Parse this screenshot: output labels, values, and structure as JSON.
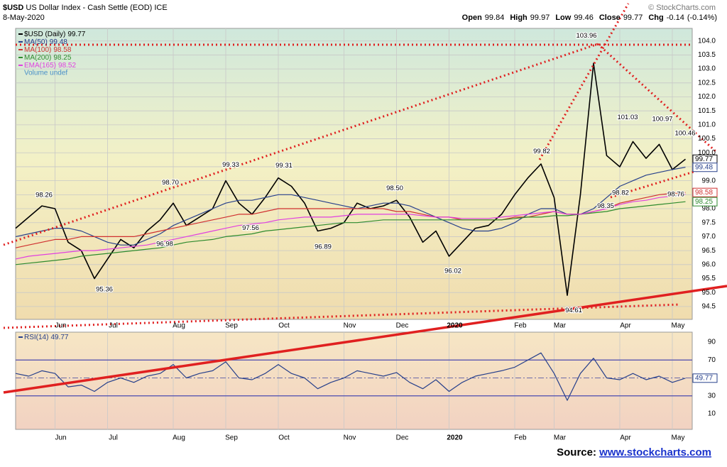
{
  "chart_data": [
    {
      "type": "line",
      "symbol": "$USD",
      "title": "US Dollar Index - Cash Settle (EOD) ICE",
      "subtitle": "8-May-2020",
      "copyright": "© StockCharts.com",
      "quote": [
        {
          "label": "Open",
          "value": 99.84
        },
        {
          "label": "High",
          "value": 99.97
        },
        {
          "label": "Low",
          "value": 99.46
        },
        {
          "label": "Close",
          "value": 99.77
        },
        {
          "label": "Chg",
          "value": -0.14,
          "pct_label": "(-0.14%)"
        }
      ],
      "volume_label": "Volume undef",
      "categories": [
        null,
        null,
        null,
        "Jun",
        null,
        null,
        null,
        "Jul",
        null,
        null,
        null,
        null,
        "Aug",
        null,
        null,
        null,
        "Sep",
        null,
        null,
        null,
        "Oct",
        null,
        null,
        null,
        null,
        "Nov",
        null,
        null,
        null,
        "Dec",
        null,
        null,
        null,
        "2020",
        null,
        null,
        null,
        null,
        "Feb",
        null,
        null,
        "Mar",
        null,
        null,
        null,
        null,
        "Apr",
        null,
        null,
        null,
        "May",
        null
      ],
      "ylim": [
        94.04,
        104.45
      ],
      "yticks": [
        {
          "value": 104,
          "label": "104.0"
        },
        103.5,
        {
          "value": 103,
          "label": "103.0"
        },
        102.5,
        {
          "value": 102,
          "label": "102.0"
        },
        101.5,
        {
          "value": 101,
          "label": "101.0"
        },
        100.5,
        {
          "value": 100,
          "label": "100.0"
        },
        99.5,
        {
          "value": 99,
          "label": "99.0"
        },
        98.5,
        {
          "value": 98,
          "label": "98.0"
        },
        97.5,
        {
          "value": 97,
          "label": "97.0"
        },
        96.5,
        {
          "value": 96,
          "label": "96.0"
        },
        95.5,
        {
          "value": 95,
          "label": "95.0"
        },
        94.5
      ],
      "grid": true,
      "series": [
        {
          "name": "$USD (Daily)",
          "color": "#000000",
          "values": [
            97.3,
            97.7,
            98.1,
            98.0,
            96.8,
            96.5,
            95.5,
            96.2,
            96.9,
            96.6,
            97.2,
            97.6,
            98.2,
            97.4,
            97.7,
            98.0,
            99.0,
            98.2,
            97.8,
            98.4,
            99.1,
            98.8,
            98.2,
            97.2,
            97.3,
            97.5,
            98.2,
            98.0,
            98.1,
            98.3,
            97.7,
            96.8,
            97.2,
            96.3,
            96.8,
            97.3,
            97.4,
            97.8,
            98.5,
            99.1,
            99.6,
            98.4,
            94.9,
            98.5,
            103.2,
            99.9,
            99.5,
            100.4,
            99.8,
            100.3,
            99.4,
            99.77
          ]
        },
        {
          "name": "MA(50)",
          "color": "#27408b",
          "values": [
            97.0,
            97.1,
            97.2,
            97.3,
            97.3,
            97.2,
            97.0,
            96.8,
            96.7,
            96.7,
            96.9,
            97.1,
            97.4,
            97.6,
            97.8,
            98.0,
            98.2,
            98.3,
            98.3,
            98.4,
            98.5,
            98.5,
            98.4,
            98.3,
            98.2,
            98.1,
            98.0,
            98.1,
            98.2,
            98.2,
            98.1,
            97.9,
            97.7,
            97.5,
            97.3,
            97.2,
            97.2,
            97.3,
            97.5,
            97.8,
            98.0,
            98.0,
            97.8,
            97.8,
            98.0,
            98.4,
            98.8,
            99.0,
            99.2,
            99.3,
            99.4,
            99.48
          ]
        },
        {
          "name": "MA(100)",
          "color": "#d03030",
          "values": [
            96.6,
            96.7,
            96.8,
            96.9,
            96.9,
            97.0,
            97.0,
            97.0,
            97.0,
            97.0,
            97.1,
            97.2,
            97.3,
            97.4,
            97.5,
            97.6,
            97.7,
            97.8,
            97.8,
            97.9,
            98.0,
            98.0,
            98.0,
            98.0,
            98.0,
            98.0,
            98.0,
            98.0,
            98.0,
            97.9,
            97.9,
            97.8,
            97.7,
            97.7,
            97.6,
            97.6,
            97.6,
            97.6,
            97.7,
            97.7,
            97.8,
            97.9,
            97.8,
            97.8,
            97.9,
            98.0,
            98.2,
            98.3,
            98.4,
            98.5,
            98.55,
            98.58
          ]
        },
        {
          "name": "MA(200)",
          "color": "#2e8b2e",
          "values": [
            96.0,
            96.05,
            96.1,
            96.15,
            96.2,
            96.3,
            96.35,
            96.4,
            96.45,
            96.5,
            96.55,
            96.6,
            96.7,
            96.8,
            96.85,
            96.9,
            97.0,
            97.05,
            97.1,
            97.2,
            97.25,
            97.3,
            97.35,
            97.4,
            97.45,
            97.5,
            97.5,
            97.55,
            97.6,
            97.6,
            97.6,
            97.6,
            97.6,
            97.6,
            97.6,
            97.6,
            97.6,
            97.6,
            97.65,
            97.7,
            97.7,
            97.75,
            97.75,
            97.8,
            97.85,
            97.9,
            98.0,
            98.05,
            98.1,
            98.15,
            98.2,
            98.25
          ]
        },
        {
          "name": "EMA(165)",
          "color": "#e040e0",
          "values": [
            96.2,
            96.3,
            96.35,
            96.4,
            96.45,
            96.5,
            96.5,
            96.55,
            96.6,
            96.65,
            96.7,
            96.8,
            96.9,
            97.0,
            97.1,
            97.2,
            97.3,
            97.4,
            97.45,
            97.5,
            97.6,
            97.65,
            97.7,
            97.7,
            97.7,
            97.75,
            97.8,
            97.8,
            97.8,
            97.8,
            97.8,
            97.75,
            97.7,
            97.7,
            97.65,
            97.65,
            97.65,
            97.7,
            97.75,
            97.8,
            97.85,
            97.9,
            97.8,
            97.8,
            97.9,
            98.0,
            98.15,
            98.25,
            98.3,
            98.4,
            98.45,
            98.52
          ]
        }
      ],
      "annotations": [
        98.26,
        95.36,
        {
          "value": 98.7,
          "label": "98.70"
        },
        96.98,
        99.33,
        97.56,
        99.31,
        96.89,
        {
          "value": 98.5,
          "label": "98.50"
        },
        96.02,
        99.82,
        103.96,
        94.61,
        98.35,
        101.03,
        98.82,
        100.97,
        98.76,
        100.46
      ],
      "source_label": "Source:",
      "source": "www.stockcharts.com"
    },
    {
      "type": "line",
      "ylim": [
        -7.4,
        101.1
      ],
      "yticks": [
        10,
        30,
        70,
        90
      ],
      "levels": [
        30,
        50,
        70
      ],
      "series": [
        {
          "name": "RSI(14)",
          "color": "#27408b",
          "values": [
            55,
            52,
            58,
            55,
            40,
            42,
            35,
            45,
            50,
            45,
            52,
            55,
            65,
            50,
            55,
            58,
            68,
            50,
            48,
            55,
            65,
            55,
            50,
            38,
            45,
            50,
            58,
            55,
            52,
            56,
            45,
            38,
            48,
            35,
            45,
            52,
            55,
            58,
            62,
            70,
            78,
            55,
            25,
            55,
            72,
            50,
            48,
            55,
            48,
            52,
            45,
            49.77
          ]
        }
      ]
    }
  ]
}
